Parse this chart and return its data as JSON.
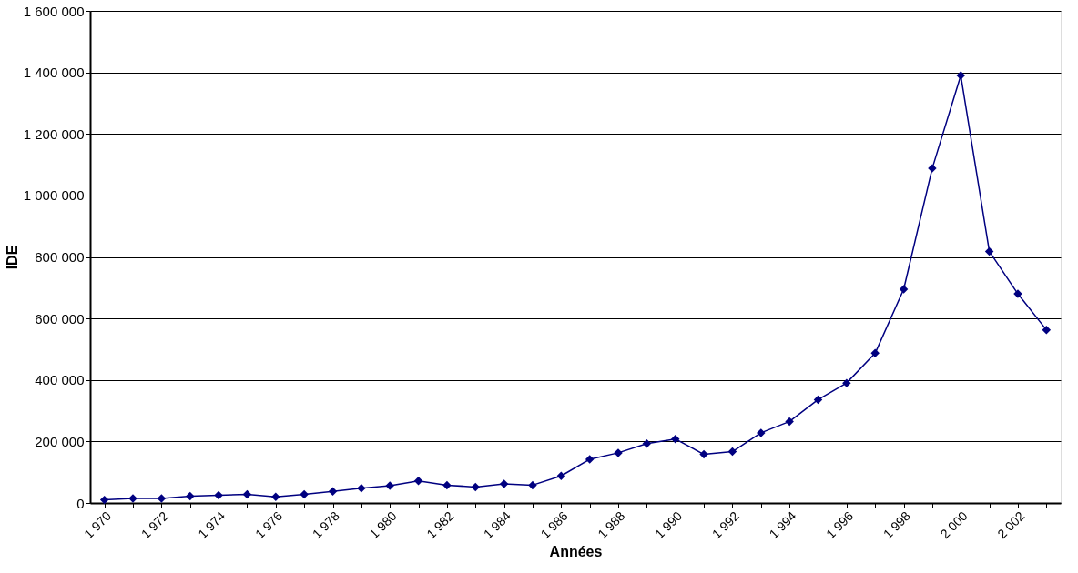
{
  "chart_data": {
    "type": "line",
    "xlabel": "Années",
    "ylabel": "IDE",
    "categories": [
      "1 970",
      null,
      "1 972",
      null,
      "1 974",
      null,
      "1 976",
      null,
      "1 978",
      null,
      "1 980",
      null,
      "1 982",
      null,
      "1 984",
      null,
      "1 986",
      null,
      "1 988",
      null,
      "1 990",
      null,
      "1 992",
      null,
      "1 994",
      null,
      "1 996",
      null,
      "1 998",
      null,
      "2 000",
      null,
      "2 002",
      null
    ],
    "series": [
      {
        "color": "#000080",
        "values": [
          10000,
          15000,
          15000,
          22000,
          25000,
          28000,
          20000,
          28000,
          38000,
          48000,
          56000,
          72000,
          58000,
          52000,
          62000,
          58000,
          88000,
          142000,
          163000,
          193000,
          208000,
          158000,
          167000,
          228000,
          265000,
          336000,
          390000,
          487000,
          695000,
          1088000,
          1390000,
          818000,
          680000,
          563000
        ]
      }
    ],
    "ylim": [
      0,
      1600000
    ],
    "yticks": [
      {
        "value": 0,
        "label": "0"
      },
      {
        "value": 200000,
        "label": "200 000"
      },
      {
        "value": 400000,
        "label": "400 000"
      },
      {
        "value": 600000,
        "label": "600 000"
      },
      {
        "value": 800000,
        "label": "800 000"
      },
      {
        "value": 1000000,
        "label": "1 000 000"
      },
      {
        "value": 1200000,
        "label": "1 200 000"
      },
      {
        "value": 1400000,
        "label": "1 400 000"
      },
      {
        "value": 1600000,
        "label": "1 600 000"
      }
    ],
    "grid": "y",
    "legend": false,
    "marker": "diamond",
    "line_style": "solid"
  }
}
